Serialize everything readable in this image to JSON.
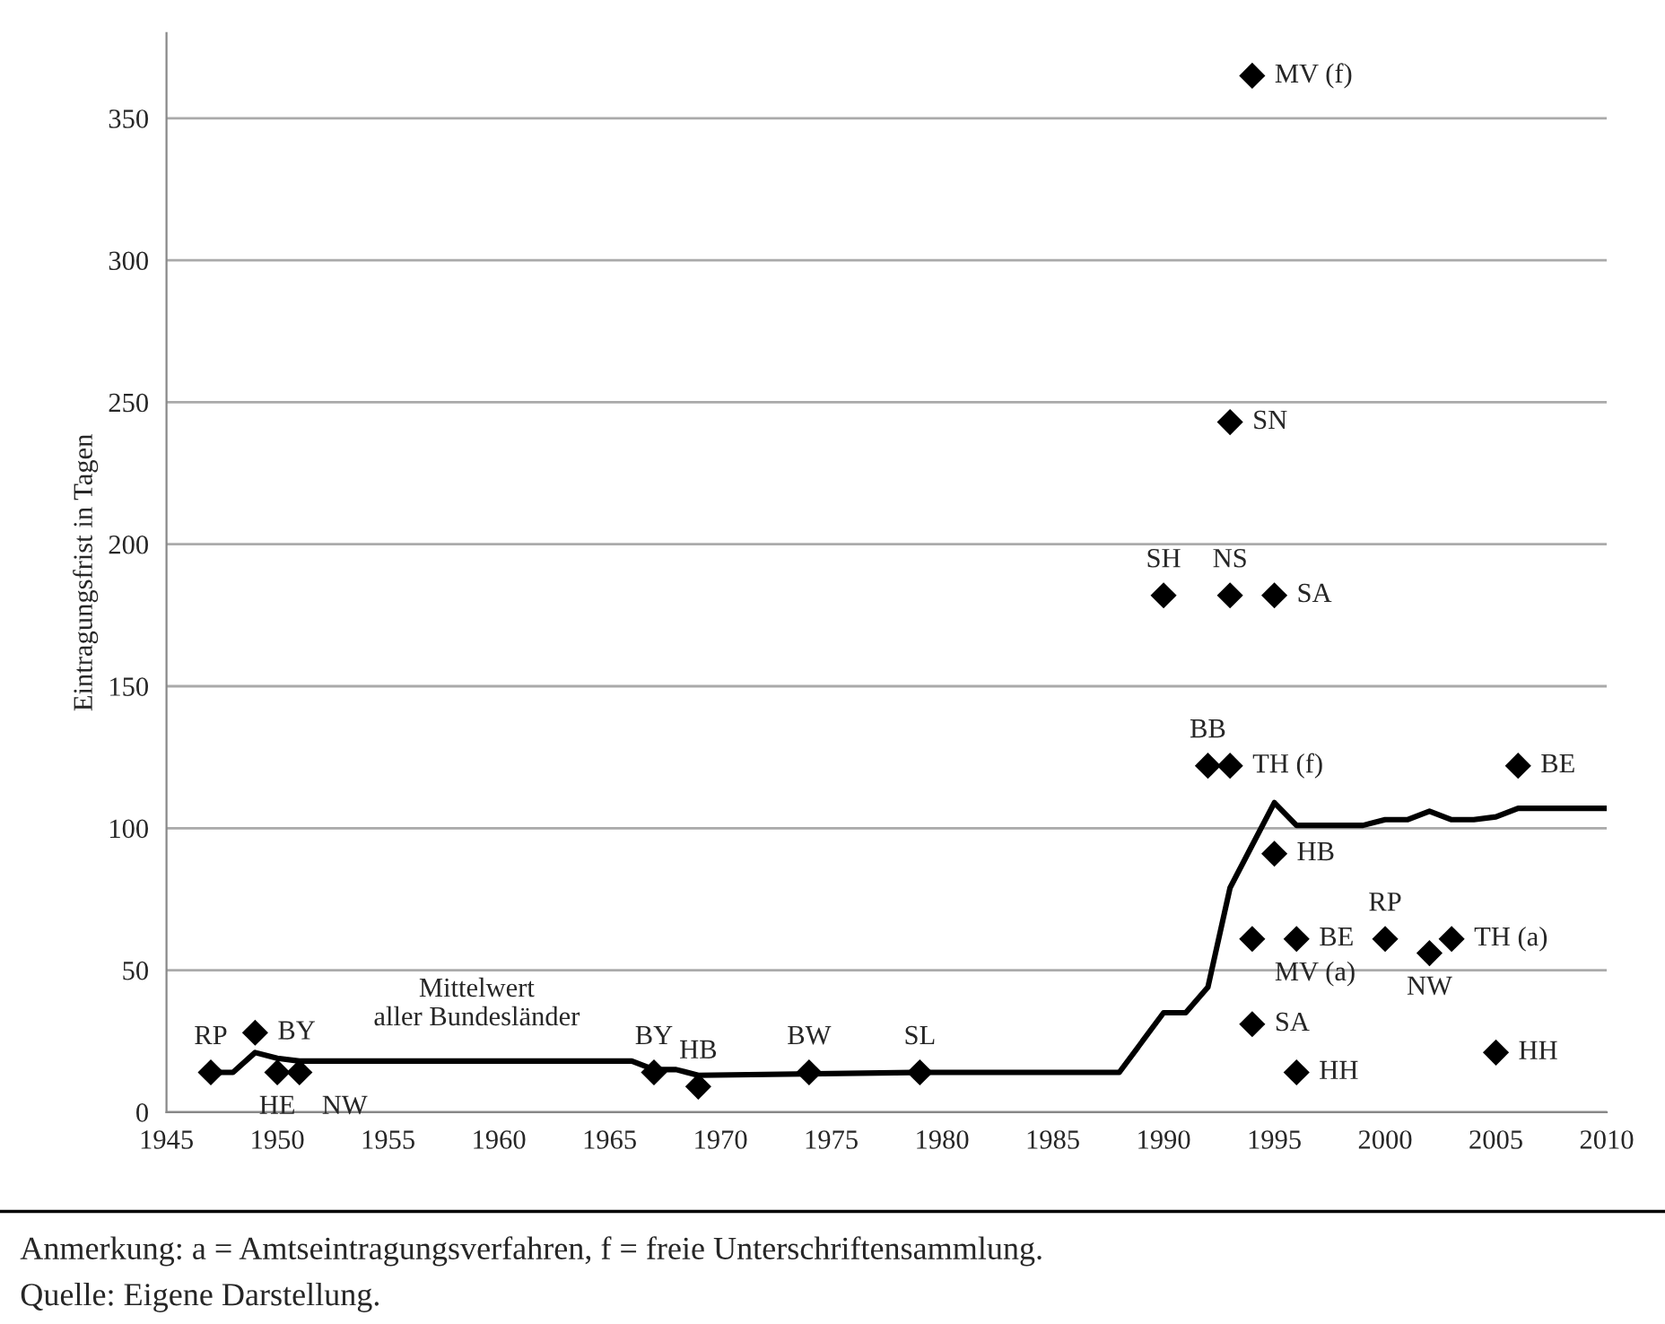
{
  "chart_data": {
    "type": "scatter",
    "ylabel": "Eintragungsfrist in Tagen",
    "xlim": [
      1945,
      2010
    ],
    "xticks": [
      1945,
      1950,
      1955,
      1960,
      1965,
      1970,
      1975,
      1980,
      1985,
      1990,
      1995,
      2000,
      2005,
      2010
    ],
    "ylim": [
      0,
      380
    ],
    "yticks": [
      0,
      50,
      100,
      150,
      200,
      250,
      300,
      350
    ],
    "grid": "y",
    "legend": false,
    "series": [
      {
        "marker": "diamond",
        "color": "#000000",
        "x": [
          1947,
          1949,
          1950,
          1951,
          1967,
          1969,
          1974,
          1979,
          1990,
          1992,
          1993,
          1993,
          1993,
          1994,
          1994,
          1994,
          1995,
          1995,
          1996,
          1996,
          2000,
          2002,
          2003,
          2005,
          2006
        ],
        "values": [
          14,
          28,
          14,
          14,
          14,
          9,
          14,
          14,
          182,
          122,
          122,
          182,
          243,
          365,
          61,
          31,
          182,
          91,
          61,
          14,
          61,
          56,
          61,
          21,
          122
        ]
      },
      {
        "type": "line",
        "marker": "none",
        "line_style": "solid",
        "color": "#000000",
        "x": [
          1947,
          1948,
          1949,
          1950,
          1951,
          1966,
          1967,
          1968,
          1969,
          1979,
          1988,
          1990,
          1991,
          1992,
          1993,
          1994,
          1995,
          1996,
          1999,
          2000,
          2001,
          2002,
          2003,
          2004,
          2005,
          2006,
          2010
        ],
        "values": [
          14,
          14,
          21,
          19,
          18,
          18,
          15,
          15,
          13,
          14,
          14,
          35,
          35,
          44,
          79,
          94,
          109,
          101,
          101,
          103,
          103,
          106,
          103,
          103,
          104,
          107,
          107
        ]
      }
    ],
    "annotations": [
      {
        "text": "RP",
        "x": 1947,
        "y": 14
      },
      {
        "text": "BY",
        "x": 1949,
        "y": 28
      },
      {
        "text": "HE",
        "x": 1950,
        "y": 14
      },
      {
        "text": "NW",
        "x": 1951,
        "y": 14
      },
      {
        "text": "BY",
        "x": 1967,
        "y": 14
      },
      {
        "text": "HB",
        "x": 1969,
        "y": 9
      },
      {
        "text": "BW",
        "x": 1974,
        "y": 14
      },
      {
        "text": "SL",
        "x": 1979,
        "y": 14
      },
      {
        "text": "SH",
        "x": 1990,
        "y": 182
      },
      {
        "text": "BB",
        "x": 1992,
        "y": 122
      },
      {
        "text": "TH (f)",
        "x": 1993,
        "y": 122
      },
      {
        "text": "NS",
        "x": 1993,
        "y": 182
      },
      {
        "text": "SN",
        "x": 1993,
        "y": 243
      },
      {
        "text": "MV (f)",
        "x": 1994,
        "y": 365
      },
      {
        "text": "MV (a)",
        "x": 1994,
        "y": 61
      },
      {
        "text": "SA",
        "x": 1994,
        "y": 31
      },
      {
        "text": "SA",
        "x": 1995,
        "y": 182
      },
      {
        "text": "HB",
        "x": 1995,
        "y": 91
      },
      {
        "text": "BE",
        "x": 1996,
        "y": 61
      },
      {
        "text": "HH",
        "x": 1996,
        "y": 14
      },
      {
        "text": "RP",
        "x": 2000,
        "y": 61
      },
      {
        "text": "NW",
        "x": 2002,
        "y": 56
      },
      {
        "text": "TH (a)",
        "x": 2003,
        "y": 61
      },
      {
        "text": "HH",
        "x": 2005,
        "y": 21
      },
      {
        "text": "BE",
        "x": 2006,
        "y": 122
      },
      {
        "text": "Mittelwert\naller Bundesländer",
        "x": 1959,
        "y": 18
      },
      "Anmerkung: a = Amtseintragungsverfahren, f = freie Unterschriftensammlung.",
      "Quelle: Eigene Darstellung."
    ]
  }
}
